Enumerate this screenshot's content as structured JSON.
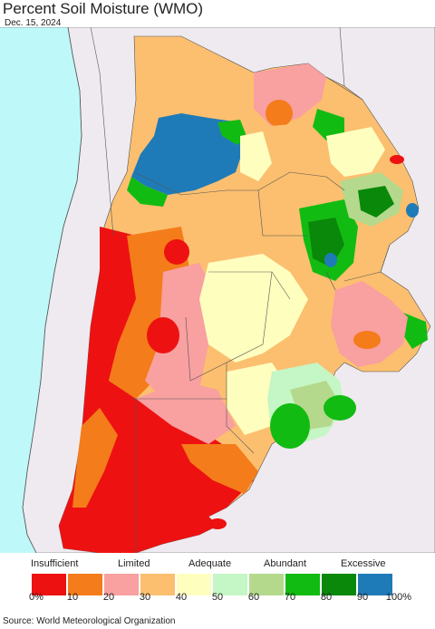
{
  "title": "Percent Soil Moisture (WMO)",
  "date": "Dec. 15, 2024",
  "legend": {
    "categories": [
      "Insufficient",
      "Limited",
      "Adequate",
      "Abundant",
      "Excessive"
    ],
    "colors": [
      "#ee1111",
      "#f47c1a",
      "#f9a0a0",
      "#fbbf6f",
      "#fefebf",
      "#c5f6c5",
      "#b4d98c",
      "#12bb12",
      "#0a880a",
      "#1f7bb8"
    ],
    "ticks": [
      "0%",
      "10",
      "20",
      "30",
      "40",
      "50",
      "60",
      "70",
      "80",
      "90",
      "100%"
    ]
  },
  "source": "Source: World Meteorological Organization"
}
